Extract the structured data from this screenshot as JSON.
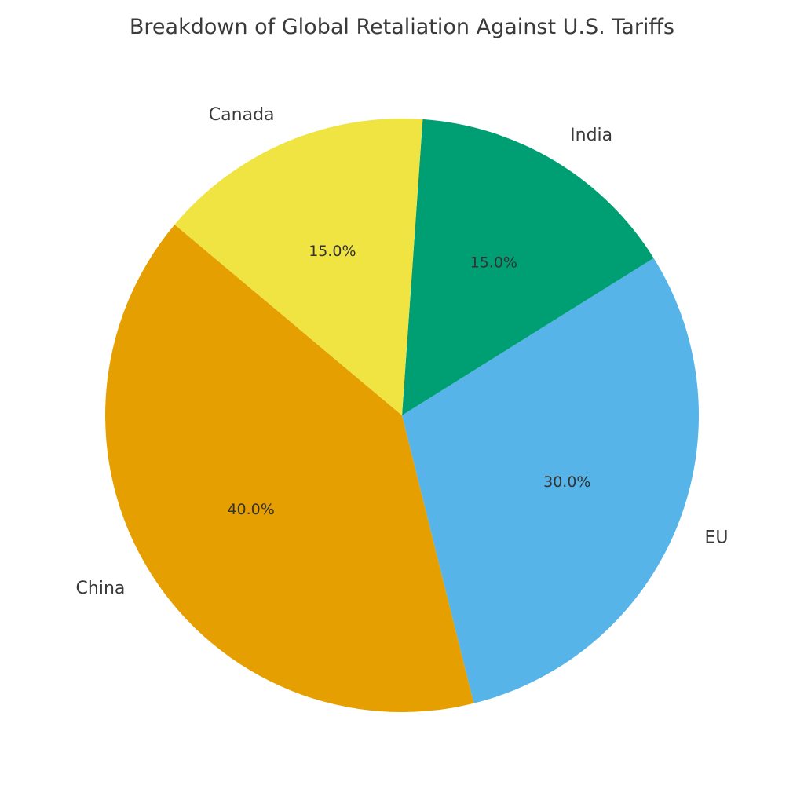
{
  "chart_data": {
    "type": "pie",
    "title": "Breakdown of Global Retaliation Against U.S. Tariffs",
    "categories": [
      "China",
      "EU",
      "India",
      "Canada"
    ],
    "values": [
      40,
      30,
      15,
      15
    ],
    "percent_labels": [
      "40.0%",
      "30.0%",
      "15.0%",
      "15.0%"
    ],
    "colors": [
      "#E69F00",
      "#56B4E9",
      "#009E73",
      "#F0E442"
    ],
    "start_angle_deg": 140,
    "direction": "counterclockwise"
  }
}
